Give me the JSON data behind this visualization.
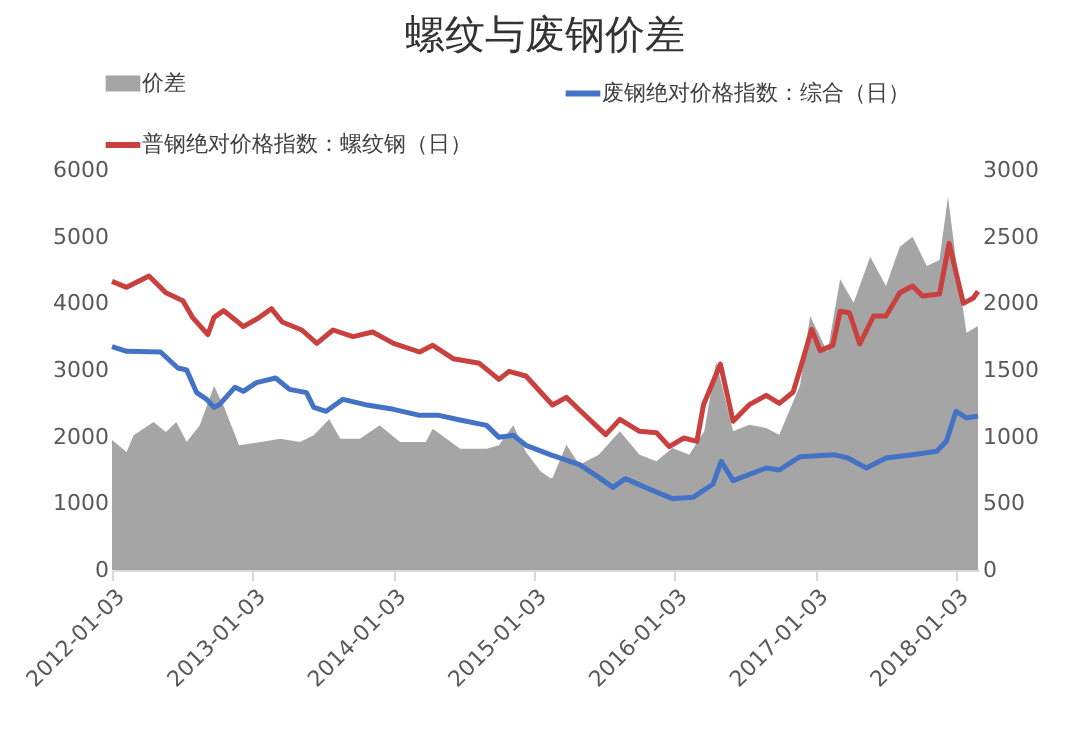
{
  "chart_data": {
    "type": "line",
    "title": "螺纹与废钢价差",
    "legend": "top",
    "marker": "none",
    "line_style": "solid",
    "grid": false,
    "xlim": [
      "2012-01-03",
      "2018-03-01"
    ],
    "xticks": [
      "2012-01-03",
      "2013-01-03",
      "2014-01-03",
      "2015-01-03",
      "2016-01-03",
      "2017-01-03",
      "2018-01-03"
    ],
    "ylim": [
      0,
      6000
    ],
    "yticks": [
      0,
      1000,
      2000,
      3000,
      4000,
      5000,
      6000
    ],
    "y2lim": [
      0,
      3000
    ],
    "y2ticks": [
      0,
      500,
      1000,
      1500,
      2000,
      2500,
      3000
    ],
    "series": [
      {
        "name": "价差",
        "type": "area",
        "axis": "y2",
        "color": "#a5a5a5",
        "x": [
          "2012-01-03",
          "2012-02-10",
          "2012-02-28",
          "2012-04-20",
          "2012-05-22",
          "2012-06-18",
          "2012-07-15",
          "2012-08-18",
          "2012-09-24",
          "2012-10-19",
          "2012-11-28",
          "2013-01-24",
          "2013-03-15",
          "2013-05-05",
          "2013-06-10",
          "2013-07-20",
          "2013-08-18",
          "2013-10-08",
          "2013-11-28",
          "2014-01-20",
          "2014-03-28",
          "2014-04-15",
          "2014-06-25",
          "2014-09-02",
          "2014-10-04",
          "2014-11-10",
          "2014-12-13",
          "2015-01-20",
          "2015-02-14",
          "2015-02-20",
          "2015-03-28",
          "2015-05-01",
          "2015-06-20",
          "2015-08-14",
          "2015-10-04",
          "2015-11-17",
          "2015-12-28",
          "2016-02-10",
          "2016-03-20",
          "2016-04-20",
          "2016-06-03",
          "2016-07-15",
          "2016-08-28",
          "2016-10-01",
          "2016-11-24",
          "2016-12-20",
          "2017-02-03",
          "2017-03-08",
          "2017-04-12",
          "2017-05-25",
          "2017-07-05",
          "2017-08-10",
          "2017-09-12",
          "2017-10-19",
          "2017-11-21",
          "2017-12-13",
          "2018-01-03",
          "2018-01-30",
          "2018-03-01"
        ],
        "values": [
          975,
          885,
          1010,
          1110,
          1035,
          1110,
          960,
          1085,
          1380,
          1230,
          935,
          960,
          985,
          960,
          1010,
          1130,
          985,
          985,
          1085,
          960,
          960,
          1060,
          910,
          910,
          935,
          1085,
          885,
          740,
          690,
          690,
          940,
          790,
          865,
          1040,
          865,
          815,
          915,
          865,
          1040,
          1560,
          1040,
          1090,
          1065,
          1015,
          1385,
          1905,
          1635,
          2180,
          2005,
          2350,
          2130,
          2425,
          2500,
          2280,
          2325,
          2800,
          2325,
          1780,
          1830
        ]
      },
      {
        "name": "废钢绝对价格指数：综合（日）",
        "color": "#4472c4",
        "x": [
          "2012-01-03",
          "2012-02-10",
          "2012-05-08",
          "2012-06-22",
          "2012-07-15",
          "2012-08-10",
          "2012-09-05",
          "2012-09-24",
          "2012-10-08",
          "2012-11-17",
          "2012-12-09",
          "2013-01-12",
          "2013-03-03",
          "2013-04-08",
          "2013-05-22",
          "2013-06-10",
          "2013-07-12",
          "2013-08-25",
          "2013-10-22",
          "2014-01-03",
          "2014-03-12",
          "2014-05-01",
          "2014-06-25",
          "2014-09-02",
          "2014-10-04",
          "2014-11-10",
          "2014-12-13",
          "2015-02-14",
          "2015-05-01",
          "2015-06-20",
          "2015-07-27",
          "2015-08-28",
          "2015-10-19",
          "2015-12-28",
          "2016-02-20",
          "2016-04-12",
          "2016-05-03",
          "2016-06-03",
          "2016-08-28",
          "2016-10-01",
          "2016-11-24",
          "2017-02-20",
          "2017-03-28",
          "2017-05-15",
          "2017-07-05",
          "2017-09-12",
          "2017-11-14",
          "2017-12-09",
          "2018-01-03",
          "2018-01-30",
          "2018-03-01"
        ],
        "values": [
          3350,
          3280,
          3270,
          3030,
          3000,
          2660,
          2560,
          2440,
          2480,
          2740,
          2680,
          2810,
          2880,
          2710,
          2660,
          2440,
          2380,
          2560,
          2480,
          2410,
          2320,
          2320,
          2250,
          2170,
          1990,
          2020,
          1870,
          1730,
          1580,
          1390,
          1240,
          1370,
          1240,
          1070,
          1090,
          1290,
          1630,
          1340,
          1530,
          1500,
          1700,
          1730,
          1680,
          1530,
          1680,
          1730,
          1780,
          1930,
          2380,
          2280,
          2310
        ]
      },
      {
        "name": "普钢绝对价格指数：螺纹钢（日）",
        "color": "#c8413f",
        "x": [
          "2012-01-03",
          "2012-02-10",
          "2012-04-08",
          "2012-05-22",
          "2012-07-05",
          "2012-07-30",
          "2012-09-08",
          "2012-09-24",
          "2012-10-19",
          "2012-11-21",
          "2012-12-09",
          "2013-01-20",
          "2013-02-20",
          "2013-03-20",
          "2013-05-10",
          "2013-06-18",
          "2013-07-30",
          "2013-09-20",
          "2013-11-10",
          "2014-01-03",
          "2014-03-12",
          "2014-04-15",
          "2014-06-07",
          "2014-08-14",
          "2014-10-04",
          "2014-10-30",
          "2014-12-13",
          "2015-01-20",
          "2015-02-20",
          "2015-03-28",
          "2015-05-01",
          "2015-07-08",
          "2015-08-14",
          "2015-10-04",
          "2015-11-17",
          "2015-12-20",
          "2016-01-27",
          "2016-03-01",
          "2016-03-18",
          "2016-05-01",
          "2016-06-03",
          "2016-07-15",
          "2016-08-28",
          "2016-10-01",
          "2016-11-06",
          "2016-12-02",
          "2016-12-24",
          "2017-01-15",
          "2017-02-17",
          "2017-03-08",
          "2017-04-01",
          "2017-04-28",
          "2017-06-03",
          "2017-07-05",
          "2017-08-10",
          "2017-09-12",
          "2017-10-08",
          "2017-11-21",
          "2017-12-16",
          "2018-01-22",
          "2018-02-17",
          "2018-03-01"
        ],
        "values": [
          4330,
          4240,
          4410,
          4160,
          4040,
          3790,
          3530,
          3790,
          3890,
          3740,
          3650,
          3790,
          3920,
          3720,
          3600,
          3400,
          3600,
          3500,
          3570,
          3400,
          3270,
          3370,
          3170,
          3100,
          2860,
          2980,
          2910,
          2670,
          2475,
          2590,
          2400,
          2030,
          2260,
          2080,
          2060,
          1850,
          1980,
          1930,
          2475,
          3090,
          2230,
          2480,
          2620,
          2500,
          2670,
          3170,
          3610,
          3290,
          3370,
          3880,
          3860,
          3390,
          3810,
          3810,
          4160,
          4260,
          4110,
          4140,
          4900,
          4000,
          4080,
          4180
        ]
      }
    ]
  }
}
